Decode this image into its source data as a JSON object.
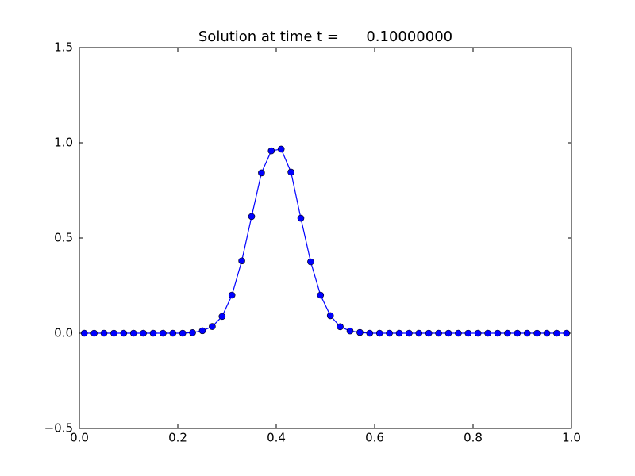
{
  "chart_data": {
    "type": "line",
    "title": "Solution at time t =      0.10000000",
    "x": [
      0.01,
      0.03,
      0.05,
      0.07,
      0.09,
      0.11,
      0.13,
      0.15,
      0.17,
      0.19,
      0.21,
      0.23,
      0.25,
      0.27,
      0.29,
      0.31,
      0.33,
      0.35,
      0.37,
      0.39,
      0.41,
      0.43,
      0.45,
      0.47,
      0.49,
      0.51,
      0.53,
      0.55,
      0.57,
      0.59,
      0.61,
      0.63,
      0.65,
      0.67,
      0.69,
      0.71,
      0.73,
      0.75,
      0.77,
      0.79,
      0.81,
      0.83,
      0.85,
      0.87,
      0.89,
      0.91,
      0.93,
      0.95,
      0.97,
      0.99
    ],
    "series": [
      {
        "color": "#0000ff",
        "values": [
          0,
          0,
          0,
          0,
          0,
          0,
          0,
          0,
          0,
          0,
          0,
          0.003,
          0.013,
          0.035,
          0.088,
          0.2,
          0.38,
          0.613,
          0.842,
          0.958,
          0.967,
          0.846,
          0.604,
          0.375,
          0.2,
          0.092,
          0.034,
          0.012,
          0.004,
          0,
          0,
          0,
          0,
          0,
          0,
          0,
          0,
          0,
          0,
          0,
          0,
          0,
          0,
          0,
          0,
          0,
          0,
          0,
          0,
          0
        ]
      }
    ],
    "xlim": [
      0,
      1
    ],
    "ylim": [
      -0.5,
      1.5
    ],
    "xticks": [
      {
        "value": 0,
        "label": "0.0"
      },
      0.2,
      0.4,
      0.6,
      0.8,
      {
        "value": 1,
        "label": "1.0"
      }
    ],
    "yticks": [
      {
        "value": -0.5,
        "label": "−0.5"
      },
      {
        "value": 0,
        "label": "0.0"
      },
      0.5,
      {
        "value": 1,
        "label": "1.0"
      },
      1.5
    ]
  }
}
